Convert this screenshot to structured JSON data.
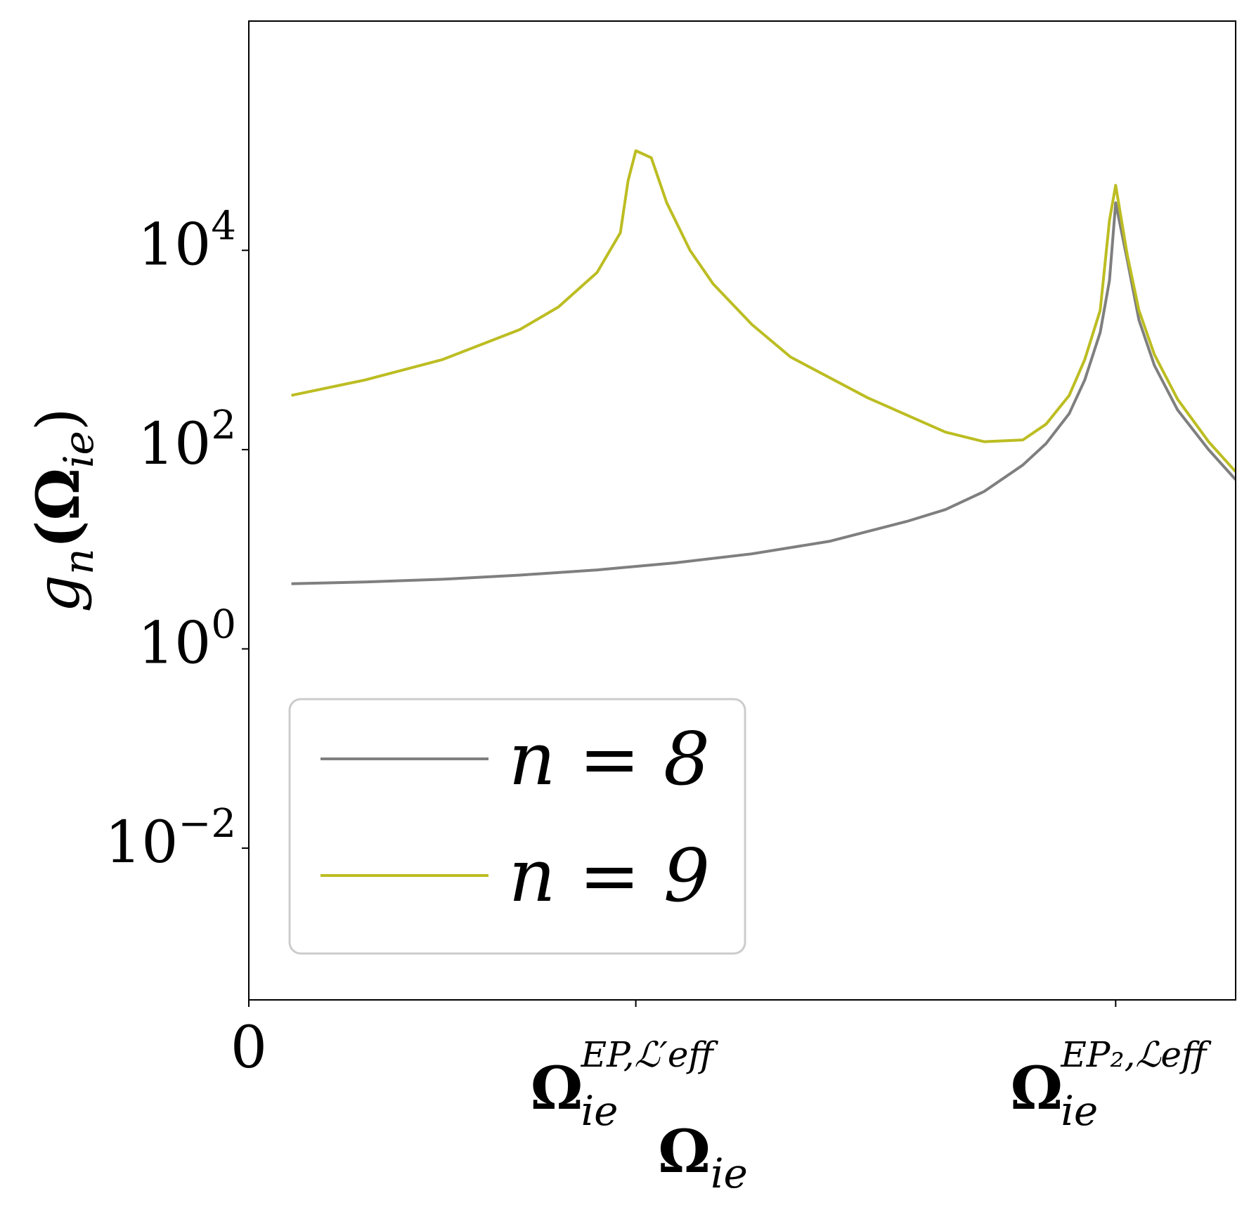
{
  "chart_data": {
    "type": "line",
    "title": "",
    "xlabel": {
      "base": "Ω",
      "sub": "ie"
    },
    "ylabel": {
      "base": "g",
      "sub": "n",
      "rest": "(Ω",
      "argsub": "ie",
      "close": ")"
    },
    "yscale": "log",
    "ylim": [
      0.0003,
      2000000
    ],
    "xlim": [
      0,
      1.275
    ],
    "grid": false,
    "legend_position": "lower-left",
    "x_ticks": [
      {
        "value": 0,
        "label": "0"
      },
      {
        "value": 0.5,
        "label": "Ω",
        "sub": "ie",
        "sup": "EP,ℒ′eff"
      },
      {
        "value": 1.12,
        "label": "Ω",
        "sub": "ie",
        "sup": "EP₂,ℒeff"
      }
    ],
    "y_ticks": [
      {
        "value": 0.01,
        "base": "10",
        "exp": "−2"
      },
      {
        "value": 1,
        "base": "10",
        "exp": "0"
      },
      {
        "value": 100,
        "base": "10",
        "exp": "2"
      },
      {
        "value": 10000,
        "base": "10",
        "exp": "4"
      }
    ],
    "series": [
      {
        "name": "n = 8",
        "color": "#7f7f7f",
        "x": [
          0.055,
          0.15,
          0.25,
          0.35,
          0.45,
          0.55,
          0.65,
          0.75,
          0.85,
          0.9,
          0.95,
          1.0,
          1.03,
          1.06,
          1.08,
          1.1,
          1.112,
          1.12,
          1.135,
          1.15,
          1.17,
          1.2,
          1.24,
          1.275
        ],
        "y": [
          4.5,
          4.7,
          5.0,
          5.5,
          6.2,
          7.3,
          9.0,
          12,
          19,
          25,
          38,
          70,
          115,
          230,
          500,
          1500,
          5000,
          30000,
          8000,
          2000,
          700,
          250,
          100,
          50
        ]
      },
      {
        "name": "n = 9",
        "color": "#bcbd22",
        "x": [
          0.055,
          0.15,
          0.25,
          0.35,
          0.4,
          0.45,
          0.48,
          0.49,
          0.5,
          0.52,
          0.54,
          0.57,
          0.6,
          0.65,
          0.7,
          0.8,
          0.9,
          0.95,
          1.0,
          1.03,
          1.06,
          1.08,
          1.1,
          1.112,
          1.12,
          1.135,
          1.15,
          1.17,
          1.2,
          1.24,
          1.275
        ],
        "y": [
          350,
          500,
          800,
          1600,
          2700,
          6000,
          15000,
          50000,
          100000,
          85000,
          30000,
          10000,
          4600,
          1800,
          850,
          330,
          150,
          120,
          125,
          180,
          350,
          800,
          2500,
          20000,
          45000,
          9000,
          2500,
          900,
          320,
          120,
          60
        ]
      }
    ]
  }
}
